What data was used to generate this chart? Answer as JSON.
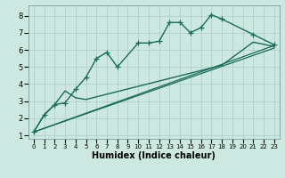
{
  "background_color": "#cce8e0",
  "grid_color": "#aaccc4",
  "line_color": "#1a6b5a",
  "xlabel": "Humidex (Indice chaleur)",
  "xlim": [
    -0.5,
    23.5
  ],
  "ylim": [
    0.8,
    8.6
  ],
  "yticks": [
    1,
    2,
    3,
    4,
    5,
    6,
    7,
    8
  ],
  "xticks": [
    0,
    1,
    2,
    3,
    4,
    5,
    6,
    7,
    8,
    9,
    10,
    11,
    12,
    13,
    14,
    15,
    16,
    17,
    18,
    19,
    20,
    21,
    22,
    23
  ],
  "xtick_labels": [
    "0",
    "1",
    "2",
    "3",
    "4",
    "5",
    "6",
    "7",
    "8",
    "9",
    "10",
    "11",
    "12",
    "13",
    "14",
    "15",
    "16",
    "17",
    "18",
    "19",
    "20",
    "21",
    "22",
    "23"
  ],
  "series": [
    {
      "x": [
        0,
        1,
        2,
        3,
        4,
        5,
        6,
        7,
        8,
        10,
        11,
        12,
        13,
        14,
        15,
        16,
        17,
        18,
        21,
        23
      ],
      "y": [
        1.2,
        2.2,
        2.8,
        2.9,
        3.7,
        4.4,
        5.5,
        5.85,
        5.0,
        6.4,
        6.4,
        6.5,
        7.6,
        7.6,
        7.0,
        7.3,
        8.05,
        7.8,
        6.9,
        6.3
      ],
      "marker": "+",
      "linewidth": 1.0,
      "markersize": 4
    },
    {
      "x": [
        0,
        1,
        2,
        3,
        4,
        5,
        18,
        21,
        23
      ],
      "y": [
        1.2,
        2.2,
        2.8,
        3.6,
        3.2,
        3.1,
        5.1,
        6.45,
        6.2
      ],
      "marker": null,
      "linewidth": 1.0
    },
    {
      "x": [
        0,
        23
      ],
      "y": [
        1.2,
        6.25
      ],
      "marker": null,
      "linewidth": 0.9
    },
    {
      "x": [
        0,
        23
      ],
      "y": [
        1.2,
        6.1
      ],
      "marker": null,
      "linewidth": 0.9
    }
  ]
}
